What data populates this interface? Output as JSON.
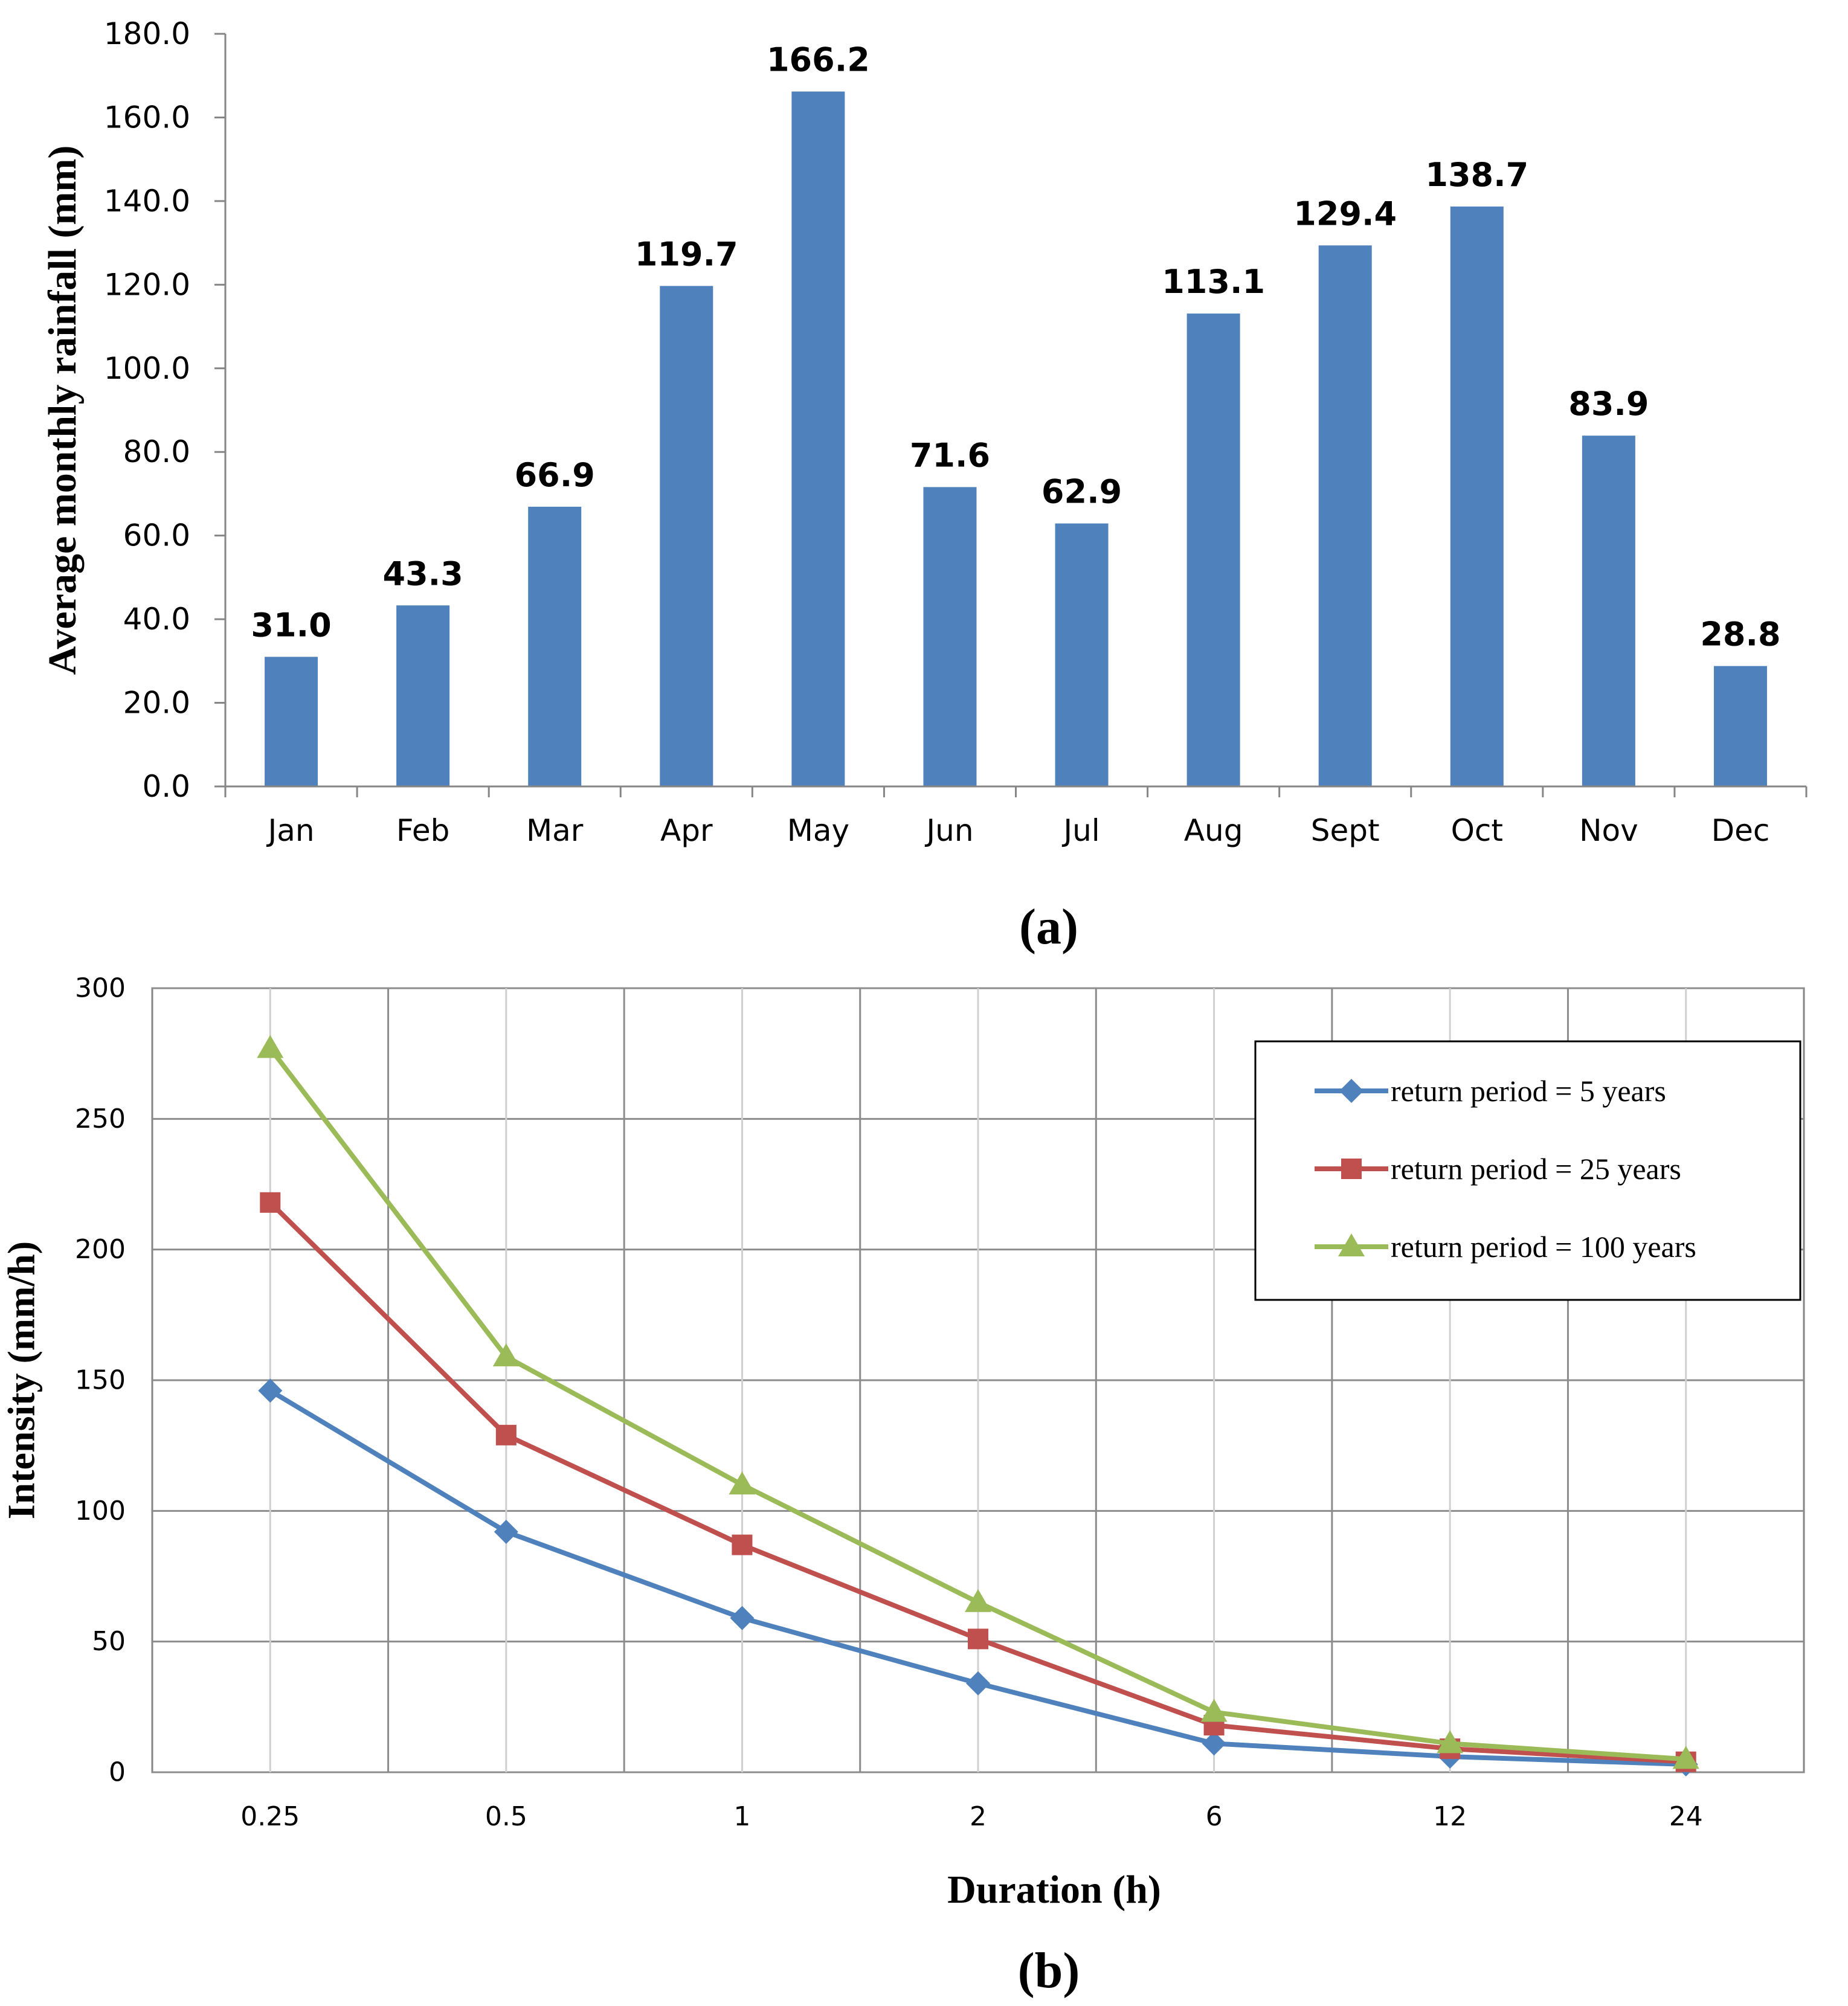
{
  "figure": {
    "panel_a_label": "(a)",
    "panel_b_label": "(b)"
  },
  "chart_data": [
    {
      "type": "bar",
      "title": "",
      "xlabel": "",
      "ylabel": "Average monthly rainfall (mm)",
      "ylim": [
        0,
        180
      ],
      "yticks": [
        "0.0",
        "20.0",
        "40.0",
        "60.0",
        "80.0",
        "100.0",
        "120.0",
        "140.0",
        "160.0",
        "180.0"
      ],
      "grid": false,
      "categories": [
        "Jan",
        "Feb",
        "Mar",
        "Apr",
        "May",
        "Jun",
        "Jul",
        "Aug",
        "Sept",
        "Oct",
        "Nov",
        "Dec"
      ],
      "values": [
        31.0,
        43.3,
        66.9,
        119.7,
        166.2,
        71.6,
        62.9,
        113.1,
        129.4,
        138.7,
        83.9,
        28.8
      ],
      "data_labels": [
        "31.0",
        "43.3",
        "66.9",
        "119.7",
        "166.2",
        "71.6",
        "62.9",
        "113.1",
        "129.4",
        "138.7",
        "83.9",
        "28.8"
      ],
      "colors": {
        "bar": "#4f81bd"
      }
    },
    {
      "type": "line",
      "title": "",
      "xlabel": "Duration (h)",
      "ylabel": "Intensity (mm/h)",
      "ylim": [
        0,
        300
      ],
      "yticks": [
        "0",
        "50",
        "100",
        "150",
        "200",
        "250",
        "300"
      ],
      "grid": true,
      "legend_position": "top-right",
      "x": [
        "0.25",
        "0.5",
        "1",
        "2",
        "6",
        "12",
        "24"
      ],
      "series": [
        {
          "name": "return period = 5 years",
          "color": "#4f81bd",
          "marker": "diamond",
          "values": [
            146,
            92,
            59,
            34,
            11,
            6,
            3
          ]
        },
        {
          "name": "return period = 25 years",
          "color": "#c0504d",
          "marker": "square",
          "values": [
            218,
            129,
            87,
            51,
            18,
            9,
            4
          ]
        },
        {
          "name": "return period = 100 years",
          "color": "#9bbb59",
          "marker": "triangle",
          "values": [
            277,
            159,
            110,
            65,
            23,
            11,
            5
          ]
        }
      ]
    }
  ]
}
